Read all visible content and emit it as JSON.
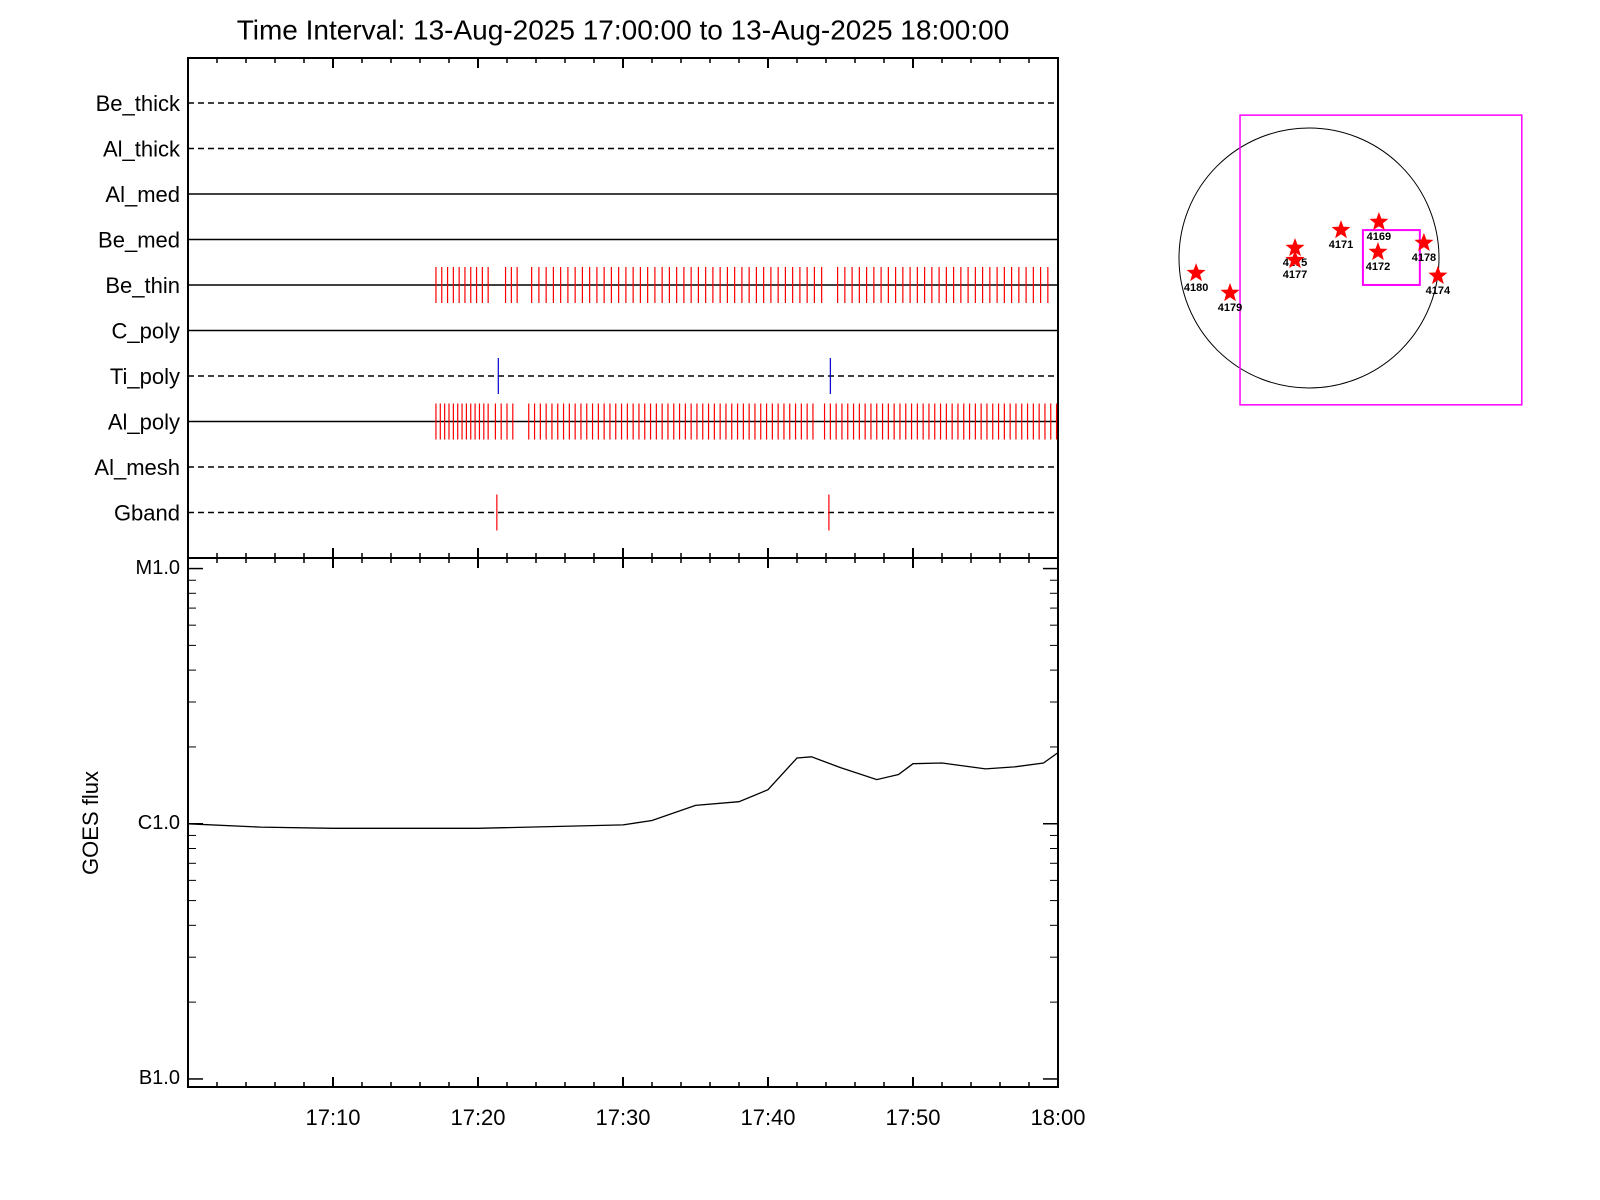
{
  "chart_data": [
    {
      "type": "timeline",
      "title": "Time Interval: 13-Aug-2025 17:00:00 to 13-Aug-2025 18:00:00",
      "xlim": [
        0,
        60
      ],
      "xticks": [
        0,
        10,
        20,
        30,
        40,
        50,
        60
      ],
      "x_minor_ticks": [
        2,
        4,
        6,
        8,
        12,
        14,
        16,
        18,
        22,
        24,
        26,
        28,
        32,
        34,
        36,
        38,
        42,
        44,
        46,
        48,
        52,
        54,
        56,
        58
      ],
      "filters": [
        {
          "name": "Be_thick",
          "style": "dashed"
        },
        {
          "name": "Al_thick",
          "style": "dashed"
        },
        {
          "name": "Al_med",
          "style": "solid"
        },
        {
          "name": "Be_med",
          "style": "solid"
        },
        {
          "name": "Be_thin",
          "style": "solid",
          "color": "#ff0000",
          "exposures": [
            17.1,
            17.5,
            17.9,
            18.3,
            18.7,
            19.1,
            19.5,
            19.9,
            20.3,
            20.7,
            21.9,
            22.3,
            22.7,
            23.7,
            24.2,
            24.7,
            25.2,
            25.7,
            26.2,
            26.7,
            27.2,
            27.7,
            28.2,
            28.7,
            29.2,
            29.7,
            30.2,
            30.7,
            31.2,
            31.7,
            32.2,
            32.7,
            33.2,
            33.7,
            34.2,
            34.7,
            35.2,
            35.7,
            36.2,
            36.7,
            37.2,
            37.7,
            38.2,
            38.7,
            39.2,
            39.7,
            40.2,
            40.7,
            41.2,
            41.7,
            42.2,
            42.7,
            43.2,
            43.7,
            44.8,
            45.3,
            45.8,
            46.3,
            46.8,
            47.3,
            47.8,
            48.3,
            48.8,
            49.3,
            49.8,
            50.3,
            50.8,
            51.3,
            51.8,
            52.3,
            52.8,
            53.3,
            53.8,
            54.3,
            54.8,
            55.3,
            55.8,
            56.3,
            56.8,
            57.3,
            57.8,
            58.3,
            58.8,
            59.3
          ]
        },
        {
          "name": "C_poly",
          "style": "solid"
        },
        {
          "name": "Ti_poly",
          "style": "dashed",
          "color": "#0000cc",
          "exposures": [
            21.4,
            44.3
          ]
        },
        {
          "name": "Al_poly",
          "style": "solid",
          "color": "#ff0000",
          "exposures": [
            17.1,
            17.4,
            17.7,
            18.0,
            18.3,
            18.6,
            18.9,
            19.2,
            19.5,
            19.8,
            20.1,
            20.4,
            20.7,
            21.2,
            21.6,
            22.0,
            22.4,
            23.5,
            23.9,
            24.3,
            24.7,
            25.1,
            25.5,
            25.9,
            26.3,
            26.7,
            27.1,
            27.5,
            27.9,
            28.3,
            28.7,
            29.1,
            29.5,
            29.9,
            30.3,
            30.7,
            31.1,
            31.5,
            31.9,
            32.3,
            32.7,
            33.1,
            33.5,
            33.9,
            34.3,
            34.7,
            35.1,
            35.5,
            35.9,
            36.3,
            36.7,
            37.1,
            37.5,
            37.9,
            38.3,
            38.7,
            39.1,
            39.5,
            39.9,
            40.3,
            40.7,
            41.1,
            41.5,
            41.9,
            42.3,
            42.7,
            43.1,
            43.9,
            44.3,
            44.7,
            45.1,
            45.5,
            45.9,
            46.3,
            46.7,
            47.1,
            47.5,
            47.9,
            48.3,
            48.7,
            49.1,
            49.5,
            49.9,
            50.3,
            50.7,
            51.1,
            51.5,
            51.9,
            52.3,
            52.7,
            53.1,
            53.5,
            53.9,
            54.3,
            54.7,
            55.1,
            55.5,
            55.9,
            56.3,
            56.7,
            57.1,
            57.5,
            57.9,
            58.3,
            58.7,
            59.1,
            59.5,
            59.9
          ]
        },
        {
          "name": "Al_mesh",
          "style": "dashed"
        },
        {
          "name": "Gband",
          "style": "dashed",
          "color": "#ff0000",
          "exposures": [
            21.3,
            44.2
          ]
        }
      ]
    },
    {
      "type": "line",
      "ylabel": "GOES flux",
      "log_scale": true,
      "color": "#000000",
      "xlim": [
        0,
        60
      ],
      "xticks": [
        {
          "value": 0,
          "label": ""
        },
        {
          "value": 10,
          "label": "17:10"
        },
        {
          "value": 20,
          "label": "17:20"
        },
        {
          "value": 30,
          "label": "17:30"
        },
        {
          "value": 40,
          "label": "17:40"
        },
        {
          "value": 50,
          "label": "17:50"
        },
        {
          "value": 60,
          "label": "18:00"
        }
      ],
      "x_minor_ticks": [
        2,
        4,
        6,
        8,
        12,
        14,
        16,
        18,
        22,
        24,
        26,
        28,
        32,
        34,
        36,
        38,
        42,
        44,
        46,
        48,
        52,
        54,
        56,
        58
      ],
      "ylim": [
        9.3e-08,
        1.1e-05
      ],
      "yticks": [
        {
          "value": 1e-07,
          "label": "B1.0"
        },
        {
          "value": 1e-06,
          "label": "C1.0"
        },
        {
          "value": 1e-05,
          "label": "M1.0"
        }
      ],
      "y_minor_ticks": [
        2e-07,
        3e-07,
        4e-07,
        5e-07,
        6e-07,
        7e-07,
        8e-07,
        9e-07,
        2e-06,
        3e-06,
        4e-06,
        5e-06,
        6e-06,
        7e-06,
        8e-06,
        9e-06
      ],
      "x": [
        0,
        5,
        10,
        20,
        30,
        32,
        35,
        38,
        40,
        42,
        43,
        45,
        47.5,
        49,
        50,
        52,
        55,
        57,
        59,
        60
      ],
      "values": [
        1e-06,
        9.7e-07,
        9.6e-07,
        9.6e-07,
        9.9e-07,
        1.03e-06,
        1.18e-06,
        1.22e-06,
        1.36e-06,
        1.81e-06,
        1.83e-06,
        1.66e-06,
        1.49e-06,
        1.56e-06,
        1.72e-06,
        1.73e-06,
        1.64e-06,
        1.67e-06,
        1.73e-06,
        1.9e-06
      ]
    },
    {
      "type": "map",
      "disk_radius": 950,
      "star_color": "#ff0000",
      "box_color": "#ff00ff",
      "boxes": [
        {
          "x": [
            -504,
            1555
          ],
          "y": [
            -1073,
            1044
          ]
        },
        {
          "x": [
            394,
            810
          ],
          "y": [
            -197,
            204
          ]
        }
      ],
      "stars": [
        {
          "label": "4169",
          "x": 511,
          "y": 263
        },
        {
          "label": "4171",
          "x": 234,
          "y": 204
        },
        {
          "label": "4172",
          "x": 504,
          "y": 44
        },
        {
          "label": "4175",
          "x": -102,
          "y": 73
        },
        {
          "label": "4177",
          "x": -102,
          "y": -15
        },
        {
          "label": "4178",
          "x": 840,
          "y": 110
        },
        {
          "label": "4174",
          "x": 942,
          "y": -131
        },
        {
          "label": "4179",
          "x": -577,
          "y": -256
        },
        {
          "label": "4180",
          "x": -825,
          "y": -110
        }
      ]
    }
  ]
}
